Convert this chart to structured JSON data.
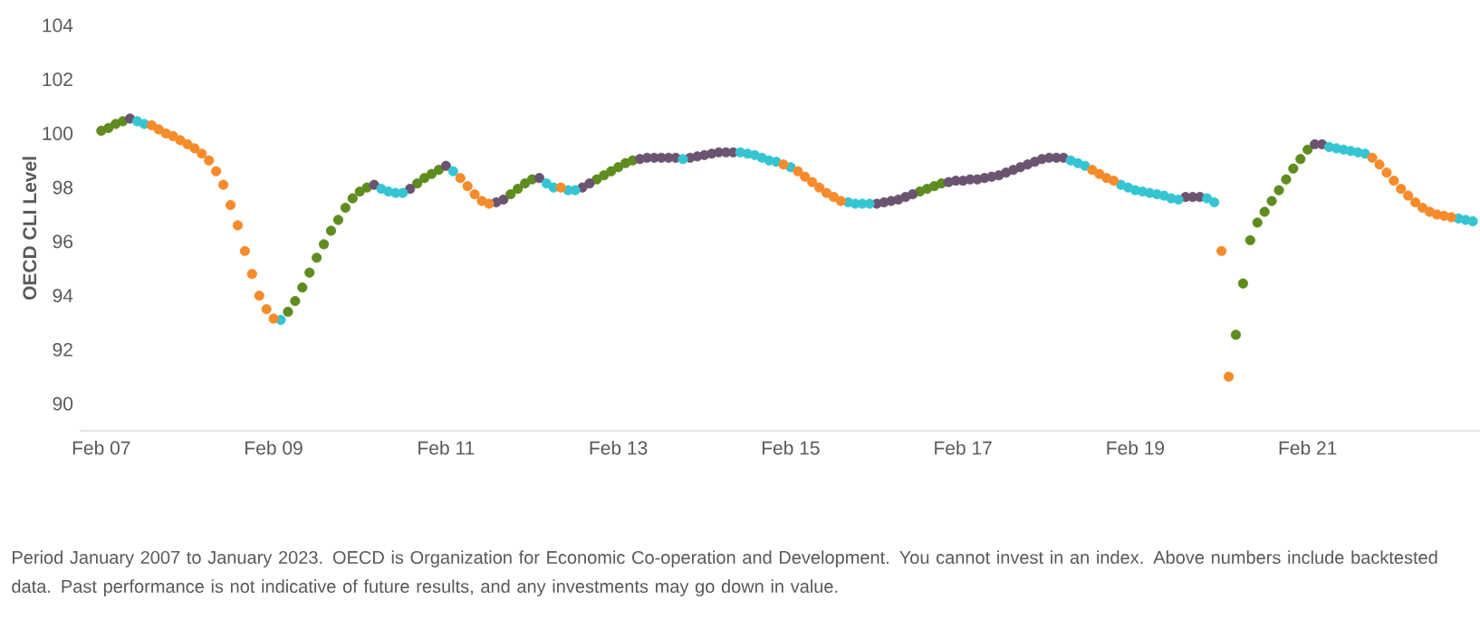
{
  "chart_data": {
    "type": "scatter",
    "ylabel": "OECD CLI Level",
    "xlim": [
      "2006-11",
      "2023-02"
    ],
    "ylim": [
      89,
      104
    ],
    "xticks": [
      {
        "value": "2007-02",
        "label": "Feb 07"
      },
      {
        "value": "2009-02",
        "label": "Feb 09"
      },
      {
        "value": "2011-02",
        "label": "Feb 11"
      },
      {
        "value": "2013-02",
        "label": "Feb 13"
      },
      {
        "value": "2015-02",
        "label": "Feb 15"
      },
      {
        "value": "2017-02",
        "label": "Feb 17"
      },
      {
        "value": "2019-02",
        "label": "Feb 19"
      },
      {
        "value": "2021-02",
        "label": "Feb 21"
      }
    ],
    "yticks": [
      90,
      92,
      94,
      96,
      98,
      100,
      102,
      104
    ],
    "series": [
      {
        "color": "#5e8c1f",
        "x": [
          "2007-02",
          "2007-03",
          "2007-04",
          "2007-05",
          "2009-04",
          "2009-05",
          "2009-06",
          "2009-07",
          "2009-08",
          "2009-09",
          "2009-10",
          "2009-11",
          "2009-12",
          "2010-01",
          "2010-02",
          "2010-03",
          "2010-10",
          "2010-11",
          "2010-12",
          "2011-01",
          "2011-11",
          "2011-12",
          "2012-01",
          "2012-02",
          "2012-11",
          "2012-12",
          "2013-01",
          "2013-02",
          "2013-03",
          "2013-04",
          "2016-08",
          "2016-09",
          "2016-10",
          "2016-11",
          "2020-04",
          "2020-05",
          "2020-06",
          "2020-07",
          "2020-08",
          "2020-09",
          "2020-10",
          "2020-11",
          "2020-12",
          "2021-01",
          "2021-02"
        ],
        "values": [
          100.1,
          100.2,
          100.35,
          100.45,
          93.4,
          93.8,
          94.3,
          94.85,
          95.4,
          95.9,
          96.4,
          96.8,
          97.25,
          97.6,
          97.85,
          98.0,
          98.15,
          98.35,
          98.5,
          98.65,
          97.75,
          97.95,
          98.15,
          98.3,
          98.3,
          98.45,
          98.6,
          98.75,
          98.9,
          99.0,
          97.85,
          97.95,
          98.05,
          98.15,
          92.55,
          94.45,
          96.05,
          96.7,
          97.1,
          97.5,
          97.9,
          98.3,
          98.7,
          99.05,
          99.4
        ]
      },
      {
        "color": "#6b5470",
        "x": [
          "2007-06",
          "2010-04",
          "2010-09",
          "2011-02",
          "2011-09",
          "2011-10",
          "2012-03",
          "2012-09",
          "2012-10",
          "2013-05",
          "2013-06",
          "2013-07",
          "2013-08",
          "2013-09",
          "2013-10",
          "2013-12",
          "2014-01",
          "2014-02",
          "2014-03",
          "2014-04",
          "2014-05",
          "2014-06",
          "2016-02",
          "2016-03",
          "2016-04",
          "2016-05",
          "2016-06",
          "2016-07",
          "2016-12",
          "2017-01",
          "2017-02",
          "2017-03",
          "2017-04",
          "2017-05",
          "2017-06",
          "2017-07",
          "2017-08",
          "2017-09",
          "2017-10",
          "2017-11",
          "2017-12",
          "2018-01",
          "2018-02",
          "2018-03",
          "2018-04",
          "2019-09",
          "2019-10",
          "2019-11",
          "2021-03",
          "2021-04"
        ],
        "values": [
          100.55,
          98.1,
          97.95,
          98.8,
          97.45,
          97.55,
          98.35,
          98.0,
          98.15,
          99.05,
          99.1,
          99.1,
          99.1,
          99.1,
          99.1,
          99.1,
          99.15,
          99.2,
          99.25,
          99.3,
          99.3,
          99.3,
          97.4,
          97.45,
          97.5,
          97.55,
          97.65,
          97.75,
          98.2,
          98.25,
          98.25,
          98.3,
          98.3,
          98.35,
          98.4,
          98.45,
          98.55,
          98.65,
          98.75,
          98.85,
          98.95,
          99.05,
          99.1,
          99.1,
          99.1,
          97.65,
          97.65,
          97.65,
          99.6,
          99.6
        ]
      },
      {
        "color": "#35c5d2",
        "x": [
          "2007-07",
          "2007-08",
          "2009-03",
          "2010-05",
          "2010-06",
          "2010-07",
          "2010-08",
          "2011-03",
          "2012-04",
          "2012-05",
          "2012-07",
          "2012-08",
          "2013-11",
          "2014-07",
          "2014-08",
          "2014-09",
          "2014-10",
          "2014-11",
          "2014-12",
          "2015-02",
          "2015-10",
          "2015-11",
          "2015-12",
          "2016-01",
          "2018-05",
          "2018-06",
          "2018-07",
          "2018-12",
          "2019-01",
          "2019-02",
          "2019-03",
          "2019-04",
          "2019-05",
          "2019-06",
          "2019-07",
          "2019-08",
          "2019-12",
          "2020-01",
          "2021-05",
          "2021-06",
          "2021-07",
          "2021-08",
          "2021-09",
          "2021-10",
          "2022-11",
          "2022-12",
          "2023-01"
        ],
        "values": [
          100.45,
          100.35,
          93.1,
          97.95,
          97.85,
          97.8,
          97.8,
          98.6,
          98.15,
          98.0,
          97.9,
          97.9,
          99.05,
          99.3,
          99.25,
          99.2,
          99.1,
          99.0,
          98.95,
          98.75,
          97.45,
          97.4,
          97.4,
          97.4,
          99.0,
          98.9,
          98.8,
          98.1,
          98.0,
          97.9,
          97.85,
          97.8,
          97.75,
          97.7,
          97.6,
          97.55,
          97.6,
          97.45,
          99.5,
          99.45,
          99.4,
          99.35,
          99.3,
          99.25,
          96.85,
          96.8,
          96.75
        ]
      },
      {
        "color": "#f58b2b",
        "x": [
          "2007-09",
          "2007-10",
          "2007-11",
          "2007-12",
          "2008-01",
          "2008-02",
          "2008-03",
          "2008-04",
          "2008-05",
          "2008-06",
          "2008-07",
          "2008-08",
          "2008-09",
          "2008-10",
          "2008-11",
          "2008-12",
          "2009-01",
          "2009-02",
          "2011-04",
          "2011-05",
          "2011-06",
          "2011-07",
          "2011-08",
          "2012-06",
          "2015-01",
          "2015-03",
          "2015-04",
          "2015-05",
          "2015-06",
          "2015-07",
          "2015-08",
          "2015-09",
          "2018-08",
          "2018-09",
          "2018-10",
          "2018-11",
          "2020-02",
          "2020-03",
          "2021-11",
          "2021-12",
          "2022-01",
          "2022-02",
          "2022-03",
          "2022-04",
          "2022-05",
          "2022-06",
          "2022-07",
          "2022-08",
          "2022-09",
          "2022-10"
        ],
        "values": [
          100.3,
          100.15,
          100.0,
          99.9,
          99.75,
          99.6,
          99.45,
          99.25,
          99.0,
          98.6,
          98.1,
          97.35,
          96.6,
          95.65,
          94.8,
          94.0,
          93.5,
          93.15,
          98.35,
          98.05,
          97.75,
          97.5,
          97.4,
          98.0,
          98.85,
          98.6,
          98.4,
          98.2,
          98.0,
          97.8,
          97.65,
          97.5,
          98.65,
          98.5,
          98.35,
          98.25,
          95.65,
          91.0,
          99.1,
          98.85,
          98.55,
          98.25,
          97.95,
          97.7,
          97.45,
          97.25,
          97.1,
          97.0,
          96.95,
          96.9
        ]
      }
    ],
    "annotations": [
      "Period January 2007 to January 2023. OECD is Organization for Economic Co-operation and Development. You cannot invest in an index. Above numbers include backtested data. Past performance is not indicative of future results, and any investments may go down in value."
    ]
  }
}
